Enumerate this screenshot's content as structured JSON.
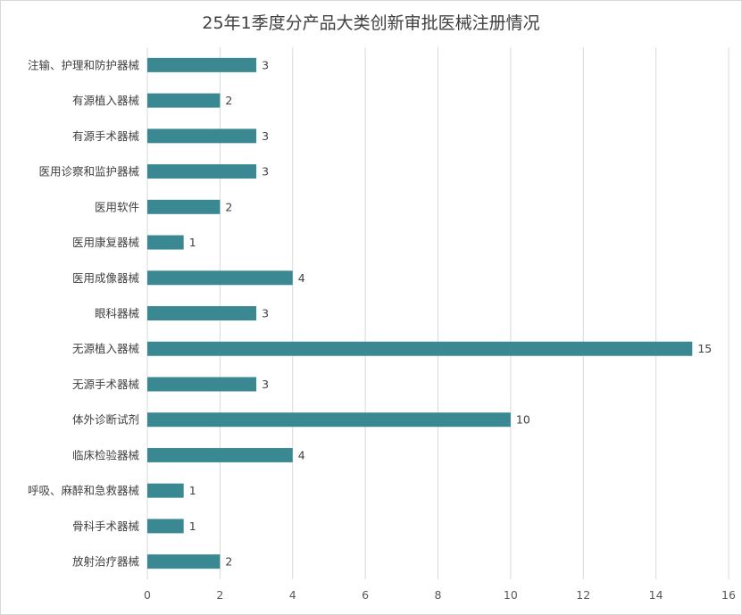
{
  "chart_data": {
    "type": "bar",
    "orientation": "horizontal",
    "title": "25年1季度分产品大类创新审批医械注册情况",
    "xlabel": "",
    "ylabel": "",
    "categories": [
      "注输、护理和防护器械",
      "有源植入器械",
      "有源手术器械",
      "医用诊察和监护器械",
      "医用软件",
      "医用康复器械",
      "医用成像器械",
      "眼科器械",
      "无源植入器械",
      "无源手术器械",
      "体外诊断试剂",
      "临床检验器械",
      "呼吸、麻醉和急救器械",
      "骨科手术器械",
      "放射治疗器械"
    ],
    "values": [
      3,
      2,
      3,
      3,
      2,
      1,
      4,
      3,
      15,
      3,
      10,
      4,
      1,
      1,
      2
    ],
    "xlim": [
      0,
      16
    ],
    "xticks": [
      "0",
      "2",
      "4",
      "6",
      "8",
      "10",
      "12",
      "14",
      "16"
    ],
    "grid": "vertical",
    "legend": "none",
    "bar_color": "#3a8891",
    "show_data_labels": true
  }
}
